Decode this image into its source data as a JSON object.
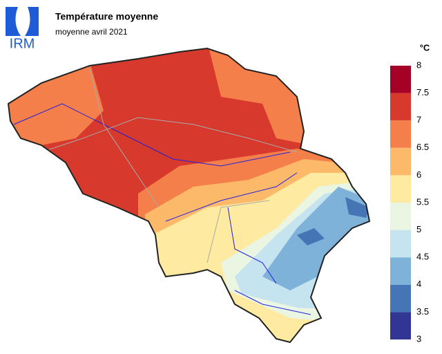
{
  "header": {
    "logo": "IRM",
    "title": "Température moyenne",
    "subtitle": "moyenne avril 2021"
  },
  "legend": {
    "unit": "°C",
    "ticks": [
      3,
      3.5,
      4,
      4.5,
      5,
      5.5,
      6,
      6.5,
      7,
      7.5,
      8
    ],
    "colors": [
      "#313695",
      "#4575b4",
      "#7fb2d8",
      "#c6e3f0",
      "#eaf5e2",
      "#feeaa0",
      "#fdb96a",
      "#f57f4a",
      "#d73a2c",
      "#a50026"
    ]
  }
}
